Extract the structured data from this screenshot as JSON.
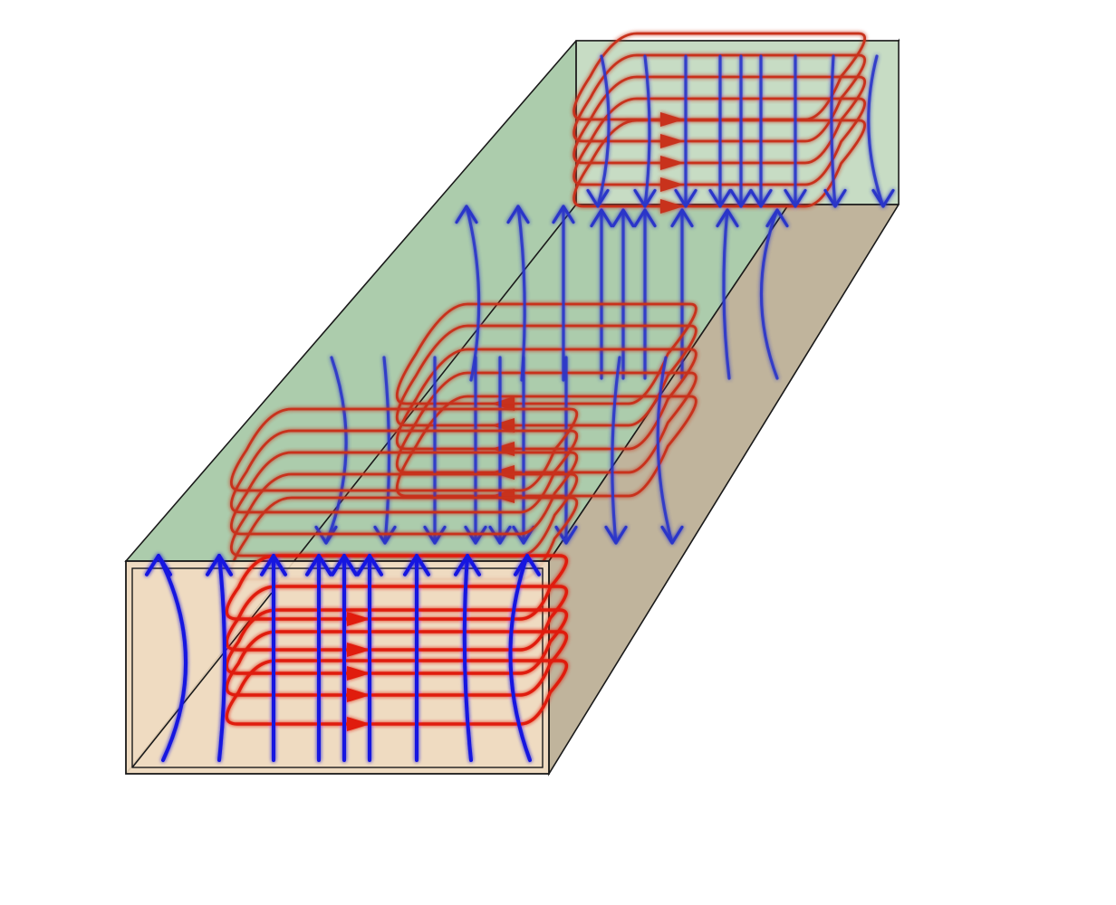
{
  "diagram": {
    "colors": {
      "top_face": "#acccac",
      "side_face": "#c0b49c",
      "front_face": "#eed8bc",
      "front_inner": "#e9d3b6",
      "far_face": "#c7dcc4",
      "electric_field": "#1515e0",
      "magnetic_field": "#e01a10"
    },
    "icons": {
      "electric_field_line": "blue-arrow-line",
      "magnetic_field_loop": "red-loop-with-arrow"
    }
  }
}
